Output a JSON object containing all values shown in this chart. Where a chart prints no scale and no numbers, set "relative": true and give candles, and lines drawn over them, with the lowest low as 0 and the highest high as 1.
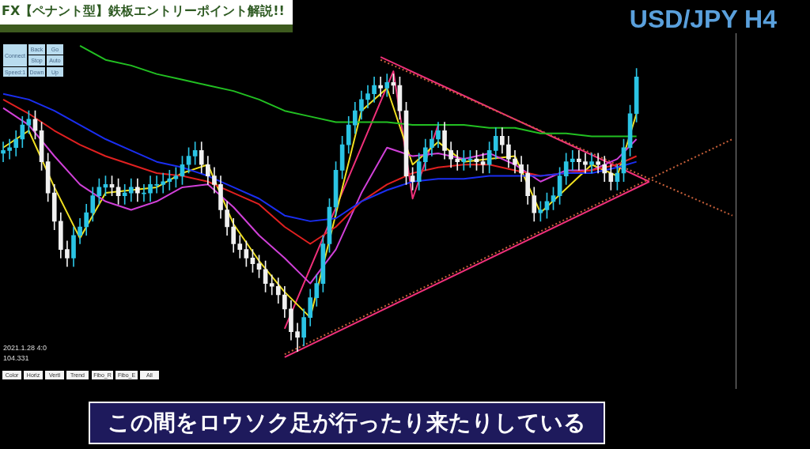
{
  "chart_data": {
    "type": "candlestick",
    "title": "FX【ペナント型】鉄板エントリーポイント解説!!",
    "subtitle": "USD/JPY H4",
    "relative": true,
    "grid": false,
    "legend": false,
    "marker": "none",
    "categories": [
      null,
      null,
      null,
      null,
      null,
      null,
      null,
      null,
      null,
      null,
      null,
      null,
      null,
      null,
      null,
      null,
      null,
      null,
      null,
      null,
      null,
      null,
      null,
      null,
      null,
      null,
      null,
      null,
      null,
      null,
      null,
      null,
      null,
      null,
      null,
      null,
      null,
      null,
      null,
      null,
      null,
      null,
      null,
      null,
      null,
      null,
      null,
      null,
      null,
      null,
      null,
      null,
      null,
      null,
      null,
      null,
      null,
      null,
      null,
      null,
      null,
      null,
      null,
      null,
      null,
      null,
      null,
      null,
      null,
      null,
      null,
      null,
      null,
      null,
      null,
      null,
      null,
      null,
      null,
      null,
      null,
      null,
      null,
      null,
      null,
      null,
      null,
      null,
      null,
      null,
      null,
      null,
      null,
      null,
      null,
      null,
      null,
      null,
      null,
      null,
      null,
      null,
      null,
      null,
      null,
      null,
      null,
      null,
      null,
      null,
      null,
      null,
      null,
      null,
      null
    ],
    "ohlc": [
      [
        0.7,
        0.74,
        0.67,
        0.71
      ],
      [
        0.71,
        0.75,
        0.68,
        0.72
      ],
      [
        0.72,
        0.78,
        0.69,
        0.75
      ],
      [
        0.75,
        0.83,
        0.72,
        0.8
      ],
      [
        0.8,
        0.85,
        0.77,
        0.82
      ],
      [
        0.82,
        0.85,
        0.75,
        0.78
      ],
      [
        0.78,
        0.81,
        0.64,
        0.67
      ],
      [
        0.67,
        0.7,
        0.53,
        0.56
      ],
      [
        0.56,
        0.59,
        0.43,
        0.46
      ],
      [
        0.46,
        0.49,
        0.33,
        0.36
      ],
      [
        0.36,
        0.39,
        0.3,
        0.33
      ],
      [
        0.33,
        0.44,
        0.3,
        0.41
      ],
      [
        0.41,
        0.47,
        0.38,
        0.44
      ],
      [
        0.44,
        0.52,
        0.41,
        0.49
      ],
      [
        0.49,
        0.58,
        0.46,
        0.55
      ],
      [
        0.55,
        0.61,
        0.52,
        0.58
      ],
      [
        0.58,
        0.62,
        0.55,
        0.59
      ],
      [
        0.59,
        0.62,
        0.55,
        0.58
      ],
      [
        0.58,
        0.61,
        0.52,
        0.55
      ],
      [
        0.55,
        0.59,
        0.52,
        0.56
      ],
      [
        0.56,
        0.61,
        0.53,
        0.58
      ],
      [
        0.58,
        0.61,
        0.53,
        0.56
      ],
      [
        0.56,
        0.59,
        0.53,
        0.56
      ],
      [
        0.56,
        0.62,
        0.53,
        0.59
      ],
      [
        0.59,
        0.62,
        0.56,
        0.59
      ],
      [
        0.59,
        0.63,
        0.56,
        0.6
      ],
      [
        0.6,
        0.64,
        0.57,
        0.61
      ],
      [
        0.61,
        0.65,
        0.58,
        0.62
      ],
      [
        0.62,
        0.69,
        0.59,
        0.66
      ],
      [
        0.66,
        0.72,
        0.63,
        0.69
      ],
      [
        0.69,
        0.74,
        0.66,
        0.71
      ],
      [
        0.71,
        0.74,
        0.63,
        0.66
      ],
      [
        0.66,
        0.69,
        0.59,
        0.62
      ],
      [
        0.62,
        0.65,
        0.56,
        0.59
      ],
      [
        0.59,
        0.62,
        0.47,
        0.5
      ],
      [
        0.5,
        0.53,
        0.41,
        0.44
      ],
      [
        0.44,
        0.47,
        0.35,
        0.38
      ],
      [
        0.38,
        0.41,
        0.33,
        0.36
      ],
      [
        0.36,
        0.39,
        0.3,
        0.33
      ],
      [
        0.33,
        0.36,
        0.28,
        0.31
      ],
      [
        0.31,
        0.34,
        0.26,
        0.29
      ],
      [
        0.29,
        0.32,
        0.21,
        0.24
      ],
      [
        0.24,
        0.27,
        0.2,
        0.23
      ],
      [
        0.23,
        0.26,
        0.17,
        0.2
      ],
      [
        0.2,
        0.23,
        0.12,
        0.15
      ],
      [
        0.15,
        0.18,
        0.04,
        0.07
      ],
      [
        0.07,
        0.1,
        0.0,
        0.05
      ],
      [
        0.05,
        0.15,
        0.02,
        0.12
      ],
      [
        0.12,
        0.22,
        0.09,
        0.19
      ],
      [
        0.19,
        0.27,
        0.16,
        0.24
      ],
      [
        0.24,
        0.41,
        0.21,
        0.38
      ],
      [
        0.38,
        0.54,
        0.35,
        0.51
      ],
      [
        0.51,
        0.67,
        0.48,
        0.64
      ],
      [
        0.64,
        0.76,
        0.61,
        0.73
      ],
      [
        0.73,
        0.83,
        0.7,
        0.8
      ],
      [
        0.8,
        0.88,
        0.77,
        0.85
      ],
      [
        0.85,
        0.92,
        0.82,
        0.89
      ],
      [
        0.89,
        0.94,
        0.86,
        0.91
      ],
      [
        0.91,
        0.97,
        0.88,
        0.94
      ],
      [
        0.94,
        0.97,
        0.9,
        0.93
      ],
      [
        0.93,
        0.98,
        0.9,
        0.95
      ],
      [
        0.95,
        0.98,
        0.91,
        0.94
      ],
      [
        0.94,
        0.97,
        0.82,
        0.85
      ],
      [
        0.85,
        0.88,
        0.59,
        0.62
      ],
      [
        0.62,
        0.65,
        0.57,
        0.6
      ],
      [
        0.6,
        0.7,
        0.57,
        0.67
      ],
      [
        0.67,
        0.75,
        0.64,
        0.72
      ],
      [
        0.72,
        0.78,
        0.69,
        0.75
      ],
      [
        0.75,
        0.81,
        0.72,
        0.78
      ],
      [
        0.78,
        0.81,
        0.68,
        0.71
      ],
      [
        0.71,
        0.74,
        0.65,
        0.68
      ],
      [
        0.68,
        0.71,
        0.64,
        0.67
      ],
      [
        0.67,
        0.71,
        0.64,
        0.68
      ],
      [
        0.68,
        0.71,
        0.65,
        0.68
      ],
      [
        0.68,
        0.71,
        0.64,
        0.67
      ],
      [
        0.67,
        0.7,
        0.63,
        0.66
      ],
      [
        0.66,
        0.74,
        0.63,
        0.71
      ],
      [
        0.71,
        0.79,
        0.68,
        0.76
      ],
      [
        0.76,
        0.79,
        0.7,
        0.73
      ],
      [
        0.73,
        0.76,
        0.65,
        0.68
      ],
      [
        0.68,
        0.71,
        0.63,
        0.66
      ],
      [
        0.66,
        0.69,
        0.6,
        0.63
      ],
      [
        0.63,
        0.66,
        0.52,
        0.55
      ],
      [
        0.55,
        0.58,
        0.46,
        0.49
      ],
      [
        0.49,
        0.53,
        0.46,
        0.5
      ],
      [
        0.5,
        0.56,
        0.47,
        0.53
      ],
      [
        0.53,
        0.58,
        0.5,
        0.55
      ],
      [
        0.55,
        0.65,
        0.52,
        0.62
      ],
      [
        0.62,
        0.7,
        0.59,
        0.67
      ],
      [
        0.67,
        0.71,
        0.64,
        0.68
      ],
      [
        0.68,
        0.71,
        0.64,
        0.67
      ],
      [
        0.67,
        0.7,
        0.63,
        0.66
      ],
      [
        0.66,
        0.7,
        0.63,
        0.67
      ],
      [
        0.67,
        0.7,
        0.63,
        0.66
      ],
      [
        0.66,
        0.69,
        0.6,
        0.63
      ],
      [
        0.63,
        0.66,
        0.57,
        0.6
      ],
      [
        0.6,
        0.66,
        0.57,
        0.63
      ],
      [
        0.63,
        0.75,
        0.6,
        0.72
      ],
      [
        0.72,
        0.87,
        0.69,
        0.84
      ],
      [
        0.84,
        1.0,
        0.81,
        0.97
      ],
      null,
      null,
      null,
      null,
      null,
      null,
      null,
      null,
      null,
      null,
      null,
      null,
      null,
      null,
      null
    ],
    "series": [
      {
        "type": "line",
        "color": "#22c022",
        "values": [
          null,
          null,
          null,
          null,
          null,
          null,
          null,
          null,
          null,
          null,
          null,
          null,
          1.08,
          null,
          null,
          null,
          1.03,
          null,
          null,
          null,
          1.01,
          null,
          null,
          null,
          0.98,
          null,
          null,
          null,
          0.96,
          null,
          null,
          null,
          0.94,
          null,
          null,
          null,
          0.92,
          null,
          null,
          null,
          0.89,
          null,
          null,
          null,
          0.85,
          null,
          null,
          null,
          0.83,
          null,
          null,
          null,
          0.81,
          null,
          null,
          null,
          0.81,
          null,
          null,
          null,
          0.81,
          null,
          null,
          null,
          0.8,
          null,
          null,
          null,
          0.8,
          null,
          null,
          null,
          0.8,
          null,
          null,
          null,
          0.79,
          null,
          null,
          null,
          0.79,
          null,
          null,
          null,
          0.77,
          null,
          null,
          null,
          0.77,
          null,
          null,
          null,
          0.76,
          null,
          null,
          null,
          0.76,
          null,
          null,
          0.76,
          null,
          null,
          null,
          null,
          null,
          null,
          null,
          null,
          null,
          null,
          null,
          null,
          null,
          null,
          null
        ]
      },
      {
        "type": "line",
        "color": "#1a2ef0",
        "values": [
          0.91,
          null,
          null,
          null,
          0.89,
          null,
          null,
          null,
          0.85,
          null,
          null,
          null,
          0.8,
          null,
          null,
          null,
          0.75,
          null,
          null,
          null,
          0.71,
          null,
          null,
          null,
          0.67,
          null,
          null,
          null,
          0.65,
          null,
          null,
          null,
          0.62,
          null,
          null,
          null,
          0.58,
          null,
          null,
          null,
          0.54,
          null,
          null,
          null,
          0.48,
          null,
          null,
          null,
          0.46,
          null,
          null,
          null,
          0.47,
          null,
          null,
          null,
          0.53,
          null,
          null,
          null,
          0.57,
          null,
          null,
          null,
          0.6,
          null,
          null,
          null,
          0.61,
          null,
          null,
          null,
          0.61,
          null,
          null,
          null,
          0.62,
          null,
          null,
          null,
          0.62,
          null,
          null,
          null,
          0.62,
          null,
          null,
          null,
          0.63,
          null,
          null,
          null,
          0.63,
          null,
          null,
          null,
          0.65,
          null,
          null,
          0.67,
          null,
          null,
          null,
          null,
          null,
          null,
          null,
          null,
          null,
          null,
          null,
          null,
          null,
          null,
          null
        ]
      },
      {
        "type": "line",
        "color": "#e02020",
        "values": [
          0.89,
          null,
          null,
          null,
          0.84,
          null,
          null,
          null,
          0.78,
          null,
          null,
          null,
          0.73,
          null,
          null,
          null,
          0.69,
          null,
          null,
          null,
          0.66,
          null,
          null,
          null,
          0.63,
          null,
          null,
          null,
          0.62,
          null,
          null,
          null,
          0.6,
          null,
          null,
          null,
          0.56,
          null,
          null,
          null,
          0.52,
          null,
          null,
          null,
          0.44,
          null,
          null,
          null,
          0.38,
          null,
          null,
          null,
          0.44,
          null,
          null,
          null,
          0.53,
          null,
          null,
          null,
          0.59,
          null,
          null,
          null,
          0.63,
          null,
          null,
          null,
          0.65,
          null,
          null,
          null,
          0.66,
          null,
          null,
          null,
          0.66,
          null,
          null,
          null,
          0.64,
          null,
          null,
          null,
          0.62,
          null,
          null,
          null,
          null,
          null,
          null,
          null,
          0.64,
          null,
          null,
          null,
          0.66,
          null,
          null,
          0.69,
          null,
          null,
          null,
          null,
          null,
          null,
          null,
          null,
          null,
          null,
          null,
          null,
          null,
          null,
          null
        ]
      },
      {
        "type": "line",
        "color": "#d040d8",
        "values": [
          0.86,
          null,
          null,
          null,
          0.8,
          null,
          null,
          null,
          0.69,
          null,
          null,
          null,
          0.59,
          null,
          null,
          null,
          0.53,
          null,
          null,
          null,
          0.5,
          null,
          null,
          null,
          0.53,
          null,
          null,
          null,
          0.58,
          null,
          null,
          null,
          0.59,
          null,
          null,
          null,
          0.51,
          null,
          null,
          null,
          0.41,
          null,
          null,
          null,
          0.33,
          null,
          null,
          null,
          0.24,
          null,
          null,
          null,
          0.36,
          null,
          null,
          null,
          0.56,
          null,
          null,
          null,
          0.72,
          null,
          null,
          null,
          0.69,
          null,
          null,
          null,
          0.7,
          null,
          null,
          null,
          0.68,
          null,
          null,
          null,
          0.7,
          null,
          null,
          null,
          0.66,
          null,
          null,
          null,
          0.6,
          null,
          null,
          null,
          0.64,
          null,
          null,
          null,
          0.64,
          null,
          null,
          null,
          0.68,
          null,
          null,
          0.75,
          null,
          null,
          null,
          null,
          null,
          null,
          null,
          null,
          null,
          null,
          null,
          null,
          null,
          null,
          null
        ]
      },
      {
        "type": "line",
        "color": "#f0e020",
        "values": [
          0.72,
          null,
          null,
          null,
          0.78,
          null,
          null,
          null,
          0.58,
          null,
          null,
          null,
          0.4,
          null,
          null,
          null,
          0.56,
          null,
          null,
          null,
          0.57,
          null,
          null,
          null,
          0.58,
          null,
          null,
          null,
          0.63,
          null,
          null,
          null,
          0.66,
          null,
          null,
          null,
          0.45,
          null,
          null,
          null,
          0.32,
          null,
          null,
          null,
          0.21,
          null,
          null,
          null,
          0.12,
          null,
          null,
          null,
          null,
          null,
          null,
          null,
          0.85,
          null,
          null,
          null,
          0.93,
          null,
          null,
          null,
          0.66,
          null,
          null,
          null,
          0.74,
          null,
          null,
          null,
          0.67,
          null,
          null,
          null,
          0.68,
          null,
          null,
          null,
          0.69,
          null,
          null,
          null,
          0.49,
          null,
          null,
          null,
          null,
          null,
          null,
          null,
          0.66,
          null,
          null,
          null,
          0.62,
          null,
          null,
          0.84,
          null,
          null,
          null,
          null,
          null,
          null,
          null,
          null,
          null,
          null,
          null,
          null,
          null,
          null,
          null
        ]
      },
      {
        "type": "line",
        "color": "#c8603a",
        "line_style": "dotted",
        "values": [
          null,
          null,
          null,
          null,
          null,
          null,
          null,
          null,
          null,
          null,
          null,
          null,
          null,
          null,
          null,
          null,
          null,
          null,
          null,
          null,
          null,
          null,
          null,
          null,
          null,
          null,
          null,
          null,
          null,
          null,
          null,
          null,
          null,
          null,
          null,
          null,
          null,
          null,
          null,
          null,
          null,
          null,
          null,
          null,
          -0.01,
          null,
          null,
          null,
          null,
          null,
          null,
          null,
          null,
          null,
          null,
          null,
          null,
          null,
          null,
          null,
          null,
          null,
          null,
          null,
          null,
          null,
          null,
          null,
          null,
          null,
          null,
          null,
          null,
          null,
          null,
          null,
          null,
          null,
          null,
          null,
          null,
          null,
          null,
          null,
          null,
          null,
          null,
          null,
          null,
          null,
          null,
          null,
          null,
          null,
          null,
          null,
          null,
          null,
          null,
          null,
          null,
          null,
          null,
          null,
          null,
          null,
          null,
          null,
          null,
          null,
          null,
          null,
          null,
          null,
          0.75
        ]
      },
      {
        "type": "line",
        "color": "#c8603a",
        "line_style": "dotted",
        "values": [
          null,
          null,
          null,
          null,
          null,
          null,
          null,
          null,
          null,
          null,
          null,
          null,
          null,
          null,
          null,
          null,
          null,
          null,
          null,
          null,
          null,
          null,
          null,
          null,
          null,
          null,
          null,
          null,
          null,
          null,
          null,
          null,
          null,
          null,
          null,
          null,
          null,
          null,
          null,
          null,
          null,
          null,
          null,
          null,
          null,
          null,
          null,
          null,
          null,
          null,
          null,
          null,
          null,
          null,
          null,
          null,
          null,
          null,
          null,
          1.03,
          null,
          null,
          null,
          null,
          null,
          null,
          null,
          null,
          null,
          null,
          null,
          null,
          null,
          null,
          null,
          null,
          null,
          null,
          null,
          null,
          null,
          null,
          null,
          null,
          null,
          null,
          null,
          null,
          null,
          null,
          null,
          null,
          null,
          null,
          null,
          null,
          null,
          null,
          null,
          null,
          null,
          null,
          null,
          null,
          null,
          null,
          null,
          null,
          null,
          null,
          null,
          null,
          null,
          null,
          0.48
        ]
      },
      {
        "type": "line",
        "color": "#f0307a",
        "values": [
          null,
          null,
          null,
          null,
          null,
          null,
          null,
          null,
          null,
          null,
          null,
          null,
          null,
          null,
          null,
          null,
          null,
          null,
          null,
          null,
          null,
          null,
          null,
          null,
          null,
          null,
          null,
          null,
          null,
          null,
          null,
          null,
          null,
          null,
          null,
          null,
          null,
          null,
          null,
          null,
          null,
          null,
          null,
          null,
          null,
          null,
          null,
          null,
          null,
          null,
          null,
          null,
          null,
          null,
          null,
          null,
          null,
          null,
          null,
          1.04,
          null,
          null,
          null,
          null,
          null,
          null,
          null,
          null,
          null,
          null,
          null,
          null,
          null,
          null,
          null,
          null,
          null,
          null,
          null,
          null,
          null,
          null,
          null,
          null,
          null,
          null,
          null,
          null,
          null,
          null,
          null,
          null,
          null,
          null,
          null,
          null,
          null,
          null,
          null,
          null,
          null,
          0.6,
          null,
          null,
          null,
          null,
          null,
          null,
          null,
          null,
          null,
          null,
          null,
          null,
          null
        ]
      },
      {
        "type": "line",
        "color": "#f0307a",
        "values": [
          null,
          null,
          null,
          null,
          null,
          null,
          null,
          null,
          null,
          null,
          null,
          null,
          null,
          null,
          null,
          null,
          null,
          null,
          null,
          null,
          null,
          null,
          null,
          null,
          null,
          null,
          null,
          null,
          null,
          null,
          null,
          null,
          null,
          null,
          null,
          null,
          null,
          null,
          null,
          null,
          null,
          null,
          null,
          null,
          -0.02,
          null,
          null,
          null,
          null,
          null,
          null,
          null,
          null,
          null,
          null,
          null,
          null,
          null,
          null,
          null,
          null,
          null,
          null,
          null,
          null,
          null,
          null,
          null,
          null,
          null,
          null,
          null,
          null,
          null,
          null,
          null,
          null,
          null,
          null,
          null,
          null,
          null,
          null,
          null,
          null,
          null,
          null,
          null,
          null,
          null,
          null,
          null,
          null,
          null,
          null,
          null,
          null,
          null,
          null,
          null,
          null,
          0.6,
          null,
          null,
          null,
          null,
          null,
          null,
          null,
          null,
          null,
          null,
          null,
          null,
          null
        ]
      },
      {
        "type": "line",
        "color": "#f0307a",
        "values": [
          null,
          null,
          null,
          null,
          null,
          null,
          null,
          null,
          null,
          null,
          null,
          null,
          null,
          null,
          null,
          null,
          null,
          null,
          null,
          null,
          null,
          null,
          null,
          null,
          null,
          null,
          null,
          null,
          null,
          null,
          null,
          null,
          null,
          null,
          null,
          null,
          null,
          null,
          null,
          null,
          null,
          null,
          null,
          null,
          0.08,
          null,
          null,
          null,
          null,
          null,
          null,
          null,
          null,
          null,
          null,
          null,
          null,
          null,
          null,
          null,
          null,
          0.99,
          null,
          null,
          0.54,
          null,
          null,
          null,
          0.8,
          null,
          null,
          null,
          null,
          null,
          null,
          null,
          null,
          null,
          null,
          null,
          null,
          null,
          null,
          null,
          null,
          null,
          null,
          null,
          null,
          null,
          null,
          null,
          null,
          null,
          null,
          null,
          null,
          null,
          null,
          null,
          null,
          null,
          null,
          null,
          null,
          null,
          null,
          null,
          null,
          null,
          null,
          null,
          null,
          null,
          null
        ]
      }
    ],
    "annotations": [
      "この間をロウソク足が行ったり来たりしている",
      "2021.1.28 4:0",
      "104.331",
      "Connect",
      "Back",
      "Go",
      "Stop",
      "Auto",
      "Speed:1",
      "Down",
      "Up",
      "Color",
      "Horiz",
      "Vertl",
      "Trend",
      "Fibo_R",
      "Fibo_E",
      "All"
    ]
  }
}
